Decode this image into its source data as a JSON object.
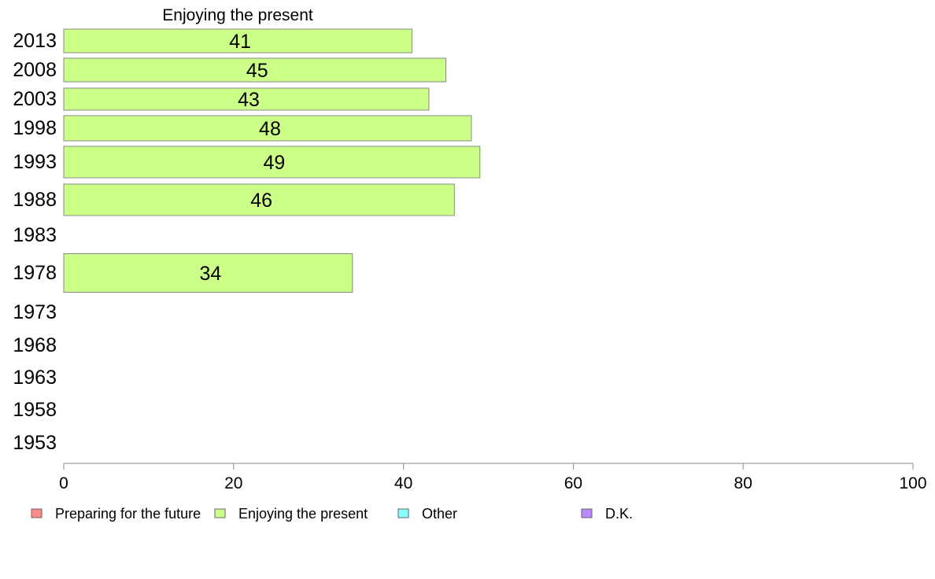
{
  "chart_data": {
    "type": "bar",
    "orientation": "horizontal",
    "title": "Enjoying the present",
    "categories": [
      "2013",
      "2008",
      "2003",
      "1998",
      "1993",
      "1988",
      "1983",
      "1978",
      "1973",
      "1968",
      "1963",
      "1958",
      "1953"
    ],
    "series": [
      {
        "name": "Enjoying the present",
        "color": "#ccff88",
        "values": [
          41,
          45,
          43,
          48,
          49,
          46,
          null,
          34,
          null,
          null,
          null,
          null,
          null
        ]
      }
    ],
    "xlim": [
      0,
      100
    ],
    "xticks": [
      0,
      20,
      40,
      60,
      80,
      100
    ],
    "grid": false,
    "legend_position": "bottom",
    "legend": [
      {
        "label": "Preparing for the future",
        "color": "#ff8888"
      },
      {
        "label": "Enjoying the present",
        "color": "#ccff88"
      },
      {
        "label": "Other",
        "color": "#88ffff"
      },
      {
        "label": "D.K.",
        "color": "#bb88ff"
      }
    ]
  }
}
